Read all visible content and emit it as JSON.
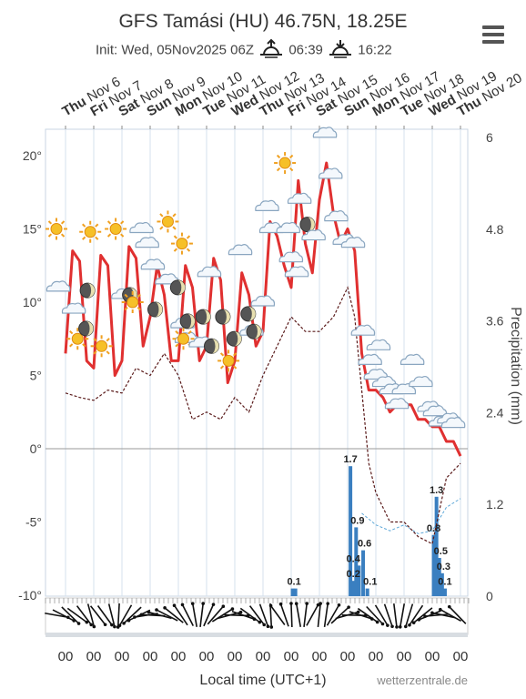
{
  "header": {
    "title": "GFS Tamási (HU) 46.75N, 18.25E",
    "init": "Init: Wed, 05Nov2025 06Z",
    "sunrise": "06:39",
    "sunset": "16:22"
  },
  "footer": {
    "xlabel": "Local time (UTC+1)",
    "credit": "wetterzentrale.de"
  },
  "chart_data": {
    "type": "line",
    "days": [
      {
        "dow": "Thu",
        "date": "Nov 6"
      },
      {
        "dow": "Fri",
        "date": "Nov 7"
      },
      {
        "dow": "Sat",
        "date": "Nov 8"
      },
      {
        "dow": "Sun",
        "date": "Nov 9"
      },
      {
        "dow": "Mon",
        "date": "Nov 10"
      },
      {
        "dow": "Tue",
        "date": "Nov 11"
      },
      {
        "dow": "Wed",
        "date": "Nov 12"
      },
      {
        "dow": "Thu",
        "date": "Nov 13"
      },
      {
        "dow": "Fri",
        "date": "Nov 14"
      },
      {
        "dow": "Sat",
        "date": "Nov 15"
      },
      {
        "dow": "Sun",
        "date": "Nov 16"
      },
      {
        "dow": "Mon",
        "date": "Nov 17"
      },
      {
        "dow": "Tue",
        "date": "Nov 18"
      },
      {
        "dow": "Wed",
        "date": "Nov 19"
      },
      {
        "dow": "Thu",
        "date": "Nov 20"
      }
    ],
    "hour_labels": [
      "00",
      "00",
      "00",
      "00",
      "00",
      "00",
      "00",
      "00",
      "00",
      "00",
      "00",
      "00",
      "00",
      "00",
      "00"
    ],
    "y_left": {
      "ticks": [
        20,
        15,
        10,
        5,
        0,
        -5,
        -10
      ],
      "labels": [
        "20°",
        "15°",
        "10°",
        "5°",
        "0°",
        "-5°",
        "-10°"
      ]
    },
    "y_right": {
      "title": "Precipitation (mm)",
      "ticks": [
        6,
        4.8,
        3.6,
        2.4,
        1.2,
        0
      ],
      "labels": [
        "6",
        "4.8",
        "3.6",
        "2.4",
        "1.2",
        "0"
      ]
    },
    "series": [
      {
        "values": [
          [
            0,
            6.5
          ],
          [
            0.25,
            13.5
          ],
          [
            0.5,
            12.8
          ],
          [
            0.75,
            6.0
          ],
          [
            1,
            5.5
          ],
          [
            1.25,
            13.2
          ],
          [
            1.5,
            12.5
          ],
          [
            1.75,
            5.0
          ],
          [
            2,
            6
          ],
          [
            2.25,
            13.8
          ],
          [
            2.5,
            13
          ],
          [
            2.75,
            7
          ],
          [
            3,
            9
          ],
          [
            3.25,
            12.5
          ],
          [
            3.5,
            10.5
          ],
          [
            3.75,
            6
          ],
          [
            4,
            6
          ],
          [
            4.25,
            12.5
          ],
          [
            4.5,
            11
          ],
          [
            4.75,
            6
          ],
          [
            5,
            7
          ],
          [
            5.25,
            13
          ],
          [
            5.5,
            11.5
          ],
          [
            5.75,
            4.5
          ],
          [
            6,
            6
          ],
          [
            6.25,
            12
          ],
          [
            6.5,
            10.5
          ],
          [
            6.75,
            7
          ],
          [
            7,
            8
          ],
          [
            7.25,
            15.5
          ],
          [
            7.5,
            14.5
          ],
          [
            7.75,
            12.5
          ],
          [
            8,
            11
          ],
          [
            8.25,
            18.3
          ],
          [
            8.5,
            14
          ],
          [
            8.75,
            12
          ],
          [
            9,
            17
          ],
          [
            9.25,
            19.5
          ],
          [
            9.5,
            16
          ],
          [
            9.75,
            14
          ],
          [
            10,
            15
          ],
          [
            10.25,
            13.5
          ],
          [
            10.5,
            6.5
          ],
          [
            10.75,
            4
          ],
          [
            11,
            4
          ],
          [
            11.25,
            3.5
          ],
          [
            11.5,
            2.5
          ],
          [
            11.75,
            3
          ],
          [
            12,
            3
          ],
          [
            12.25,
            3
          ],
          [
            12.5,
            2
          ],
          [
            12.75,
            2
          ],
          [
            13,
            1.5
          ],
          [
            13.25,
            1.5
          ],
          [
            13.5,
            0.5
          ],
          [
            13.75,
            0.5
          ],
          [
            14,
            -0.5
          ]
        ]
      },
      {
        "values": [
          [
            0,
            3.8
          ],
          [
            0.5,
            3.5
          ],
          [
            1,
            3.3
          ],
          [
            1.5,
            4
          ],
          [
            2,
            3.8
          ],
          [
            2.5,
            5.5
          ],
          [
            3,
            5
          ],
          [
            3.5,
            6.5
          ],
          [
            4,
            5
          ],
          [
            4.5,
            2
          ],
          [
            5,
            2.5
          ],
          [
            5.5,
            2
          ],
          [
            6,
            3.5
          ],
          [
            6.5,
            2.5
          ],
          [
            7,
            5
          ],
          [
            7.5,
            7
          ],
          [
            8,
            9
          ],
          [
            8.5,
            8
          ],
          [
            9,
            8
          ],
          [
            9.5,
            9
          ],
          [
            10,
            11
          ],
          [
            10.25,
            9
          ],
          [
            10.5,
            4
          ],
          [
            10.75,
            -1
          ],
          [
            11,
            -3
          ],
          [
            11.5,
            -5
          ],
          [
            12,
            -5
          ],
          [
            12.5,
            -6
          ],
          [
            13,
            -6.5
          ],
          [
            13.5,
            -2
          ],
          [
            14,
            -1
          ]
        ]
      },
      {
        "values": [
          [
            10.1,
            1.7
          ],
          [
            10.2,
            0.2
          ],
          [
            10.3,
            0.9
          ],
          [
            10.4,
            0.4
          ],
          [
            10.55,
            0.6
          ],
          [
            10.7,
            0.1
          ],
          [
            8.05,
            0.1
          ],
          [
            8.15,
            0.1
          ],
          [
            13.05,
            0.8
          ],
          [
            13.15,
            1.3
          ],
          [
            13.25,
            0.5
          ],
          [
            13.35,
            0.3
          ],
          [
            13.45,
            0.1
          ]
        ]
      }
    ],
    "bar_labels": [
      {
        "x": 8.1,
        "text": "0.1"
      },
      {
        "x": 10.1,
        "text": "1.7"
      },
      {
        "x": 10.35,
        "text": "0.9"
      },
      {
        "x": 10.2,
        "text": "0.4"
      },
      {
        "x": 10.6,
        "text": "0.6"
      },
      {
        "x": 10.2,
        "text": "0.2"
      },
      {
        "x": 10.8,
        "text": "0.1"
      },
      {
        "x": 13.15,
        "text": "1.3"
      },
      {
        "x": 13.05,
        "text": "0.8"
      },
      {
        "x": 13.3,
        "text": "0.5"
      },
      {
        "x": 13.4,
        "text": "0.3"
      },
      {
        "x": 13.45,
        "text": "0.1"
      }
    ],
    "colors": {
      "temp": "#e03030",
      "dew": "#5a1a1a",
      "precip": "#3a7fc0",
      "freeze": "#5fa8d8"
    }
  }
}
